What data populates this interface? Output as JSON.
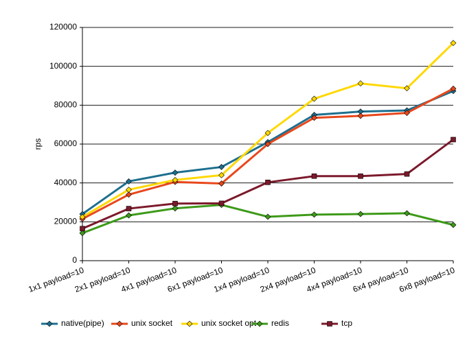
{
  "chart_data": {
    "type": "line",
    "y_label": "rps",
    "categories": [
      "1x1 payload=10",
      "2x1 payload=10",
      "4x1 payload=10",
      "6x1 payload=10",
      "1x4 payload=10",
      "2x4 payload=10",
      "4x4 payload=10",
      "6x4 payload=10",
      "6x8 payload=10"
    ],
    "series": [
      {
        "name": "native(pipe)",
        "color": "#1d6f8e",
        "marker": "diamond",
        "values": [
          24000,
          40800,
          45300,
          48200,
          61000,
          75000,
          76700,
          77300,
          87300
        ]
      },
      {
        "name": "unix socket",
        "color": "#e8471b",
        "marker": "diamond",
        "values": [
          21500,
          34000,
          40500,
          39700,
          60000,
          73500,
          74500,
          76000,
          88500
        ]
      },
      {
        "name": "unix socket opt",
        "color": "#ffd800",
        "marker": "diamond",
        "values": [
          22500,
          36500,
          41500,
          44000,
          65700,
          83300,
          91200,
          88700,
          112000
        ]
      },
      {
        "name": "redis",
        "color": "#3d9a19",
        "marker": "diamond",
        "values": [
          14200,
          23300,
          26900,
          28700,
          22600,
          23700,
          24000,
          24400,
          18400
        ]
      },
      {
        "name": "tcp",
        "color": "#7b1a2b",
        "marker": "square",
        "values": [
          16500,
          26800,
          29400,
          29500,
          40300,
          43500,
          43500,
          44600,
          62300
        ]
      }
    ],
    "ylim": [
      0,
      120000
    ],
    "yticks": [
      0,
      20000,
      40000,
      60000,
      80000,
      100000,
      120000
    ],
    "grid": true,
    "legend": "bottom"
  }
}
